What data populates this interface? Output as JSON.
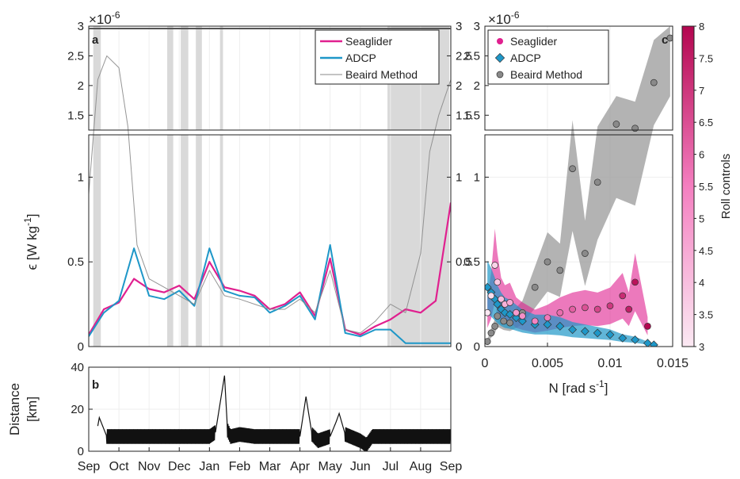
{
  "figure": {
    "panel_a_label": "a",
    "panel_b_label": "b",
    "panel_c_label": "c",
    "multiplier_a": "×10",
    "multiplier_c": "×10",
    "multiplier_exp": "-6",
    "ylabel_a": "ϵ [W kg",
    "ylabel_a_sup": "-1",
    "ylabel_a_end": "]",
    "ylabel_b_line1": "Distance",
    "ylabel_b_line2": "[km]",
    "xlabel_c": "N [rad s",
    "xlabel_c_sup": "-1",
    "xlabel_c_end": "]",
    "colorbar_label": "Roll controls"
  },
  "colors": {
    "seaglider": "#e0208f",
    "adcp": "#1e97c8",
    "beaird": "#8a8a8a",
    "shade": "#d9d9d9"
  },
  "chart_data": [
    {
      "panel": "a",
      "type": "line",
      "xlabel": "",
      "ylabel": "ϵ [W kg-1]",
      "x_months": [
        "Sep",
        "Oct",
        "Nov",
        "Dec",
        "Jan",
        "Feb",
        "Mar",
        "Apr",
        "May",
        "Jun",
        "Jul",
        "Aug",
        "Sep"
      ],
      "y_ticks_lower": [
        "0",
        "0.5",
        "1"
      ],
      "y_ticks_upper": [
        "1.5",
        "2",
        "2.5",
        "3"
      ],
      "y_unit_scale": "1e-6",
      "ylim_lower": [
        0,
        1.25
      ],
      "ylim_upper": [
        1.25,
        3
      ],
      "legend": [
        "Seaglider",
        "ADCP",
        "Beaird Method"
      ],
      "legend_position": "top-right",
      "series": [
        {
          "name": "Seaglider",
          "x": [
            0,
            0.5,
            1,
            1.5,
            2,
            2.5,
            3,
            3.5,
            4,
            4.5,
            5,
            5.5,
            6,
            6.5,
            7,
            7.5,
            8,
            8.5,
            9,
            9.5,
            10,
            10.5,
            11,
            11.5,
            12
          ],
          "y": [
            0.07,
            0.22,
            0.26,
            0.4,
            0.34,
            0.32,
            0.36,
            0.28,
            0.5,
            0.35,
            0.33,
            0.3,
            0.22,
            0.25,
            0.32,
            0.18,
            0.52,
            0.1,
            0.07,
            0.12,
            0.16,
            0.22,
            0.2,
            0.27,
            0.85
          ]
        },
        {
          "name": "ADCP",
          "x": [
            0,
            0.5,
            1,
            1.5,
            2,
            2.5,
            3,
            3.5,
            4,
            4.5,
            5,
            5.5,
            6,
            6.5,
            7,
            7.5,
            8,
            8.5,
            9,
            9.5,
            10,
            10.5,
            11,
            11.5,
            12
          ],
          "y": [
            0.06,
            0.2,
            0.27,
            0.58,
            0.3,
            0.28,
            0.33,
            0.24,
            0.58,
            0.33,
            0.3,
            0.29,
            0.2,
            0.24,
            0.3,
            0.16,
            0.6,
            0.08,
            0.06,
            0.1,
            0.1,
            0.02,
            0.02,
            0.02,
            0.02
          ]
        },
        {
          "name": "Beaird Method",
          "x": [
            0,
            0.3,
            0.6,
            1,
            1.3,
            1.6,
            2,
            2.5,
            3,
            3.5,
            4,
            4.5,
            5,
            5.5,
            6,
            6.5,
            7,
            7.5,
            8,
            8.5,
            9,
            9.5,
            10,
            10.5,
            11,
            11.3,
            11.6,
            12
          ],
          "y": [
            0.9,
            2.1,
            2.5,
            2.3,
            1.3,
            0.6,
            0.4,
            0.35,
            0.3,
            0.25,
            0.45,
            0.3,
            0.28,
            0.25,
            0.22,
            0.22,
            0.28,
            0.2,
            0.45,
            0.1,
            0.08,
            0.15,
            0.25,
            0.2,
            0.55,
            1.15,
            1.5,
            2.1
          ]
        }
      ],
      "shaded_months": [
        [
          0.15,
          0.4
        ],
        [
          2.6,
          2.8
        ],
        [
          3.05,
          3.3
        ],
        [
          3.55,
          3.75
        ],
        [
          4.35,
          4.45
        ],
        [
          9.9,
          11.95
        ]
      ]
    },
    {
      "panel": "b",
      "type": "line",
      "ylabel": "Distance [km]",
      "y_ticks": [
        "0",
        "20",
        "40"
      ],
      "ylim": [
        0,
        40
      ],
      "series": [
        {
          "name": "",
          "x": [
            0.3,
            0.35,
            0.6,
            1,
            1.5,
            2,
            2.5,
            3,
            3.5,
            4,
            4.2,
            4.5,
            4.6,
            4.7,
            5,
            5.5,
            6,
            6.5,
            7,
            7.2,
            7.4,
            7.6,
            8,
            8.2,
            8.3,
            8.5,
            9,
            9.2,
            9.4,
            9.6,
            10,
            10.5,
            11,
            11.5,
            12
          ],
          "y": [
            12,
            16,
            7,
            7,
            7,
            7,
            7,
            7,
            7,
            7,
            9,
            36,
            10,
            7,
            8,
            7,
            7,
            7,
            7,
            26,
            8,
            5,
            7,
            14,
            18,
            8,
            5,
            3,
            7,
            7,
            7,
            7,
            7,
            7,
            7
          ]
        }
      ]
    },
    {
      "panel": "c",
      "type": "scatter",
      "xlabel": "N [rad s-1]",
      "x_ticks": [
        "0",
        "0.005",
        "0.01",
        "0.015"
      ],
      "xlim": [
        0,
        0.015
      ],
      "y_ticks_lower": [
        "0",
        "0.5",
        "1"
      ],
      "y_ticks_upper": [
        "1.5",
        "2",
        "2.5",
        "3"
      ],
      "ylim_lower": [
        0,
        1.25
      ],
      "ylim_upper": [
        1.25,
        3
      ],
      "legend": [
        "Seaglider",
        "ADCP",
        "Beaird Method"
      ],
      "legend_position": "top-left",
      "colorbar": {
        "label": "Roll controls",
        "ticks": [
          "3",
          "3.5",
          "4",
          "4.5",
          "5",
          "5.5",
          "6",
          "6.5",
          "7",
          "7.5",
          "8"
        ],
        "range": [
          3,
          8
        ]
      },
      "series": [
        {
          "name": "Seaglider",
          "x": [
            0.0002,
            0.0005,
            0.0008,
            0.001,
            0.0013,
            0.0016,
            0.002,
            0.0025,
            0.003,
            0.004,
            0.005,
            0.006,
            0.007,
            0.008,
            0.009,
            0.01,
            0.011,
            0.0115,
            0.012,
            0.013
          ],
          "y": [
            0.2,
            0.3,
            0.48,
            0.38,
            0.28,
            0.25,
            0.26,
            0.2,
            0.18,
            0.15,
            0.17,
            0.2,
            0.22,
            0.23,
            0.22,
            0.24,
            0.3,
            0.22,
            0.38,
            0.12
          ]
        },
        {
          "name": "ADCP",
          "x": [
            0.0002,
            0.0005,
            0.0008,
            0.001,
            0.0013,
            0.0016,
            0.002,
            0.0025,
            0.003,
            0.004,
            0.005,
            0.006,
            0.007,
            0.008,
            0.009,
            0.01,
            0.011,
            0.012,
            0.013,
            0.0135
          ],
          "y": [
            0.35,
            0.32,
            0.28,
            0.25,
            0.22,
            0.2,
            0.19,
            0.17,
            0.15,
            0.13,
            0.13,
            0.12,
            0.1,
            0.09,
            0.08,
            0.07,
            0.05,
            0.04,
            0.02,
            0.01
          ]
        },
        {
          "name": "Beaird Method",
          "x": [
            0.0002,
            0.0005,
            0.0008,
            0.001,
            0.0015,
            0.002,
            0.003,
            0.004,
            0.005,
            0.006,
            0.007,
            0.008,
            0.009,
            0.0105,
            0.012,
            0.0135,
            0.0148
          ],
          "y": [
            0.03,
            0.08,
            0.12,
            0.18,
            0.15,
            0.14,
            0.2,
            0.35,
            0.5,
            0.45,
            1.05,
            0.55,
            0.97,
            1.35,
            1.28,
            2.05,
            2.8
          ]
        }
      ]
    }
  ]
}
